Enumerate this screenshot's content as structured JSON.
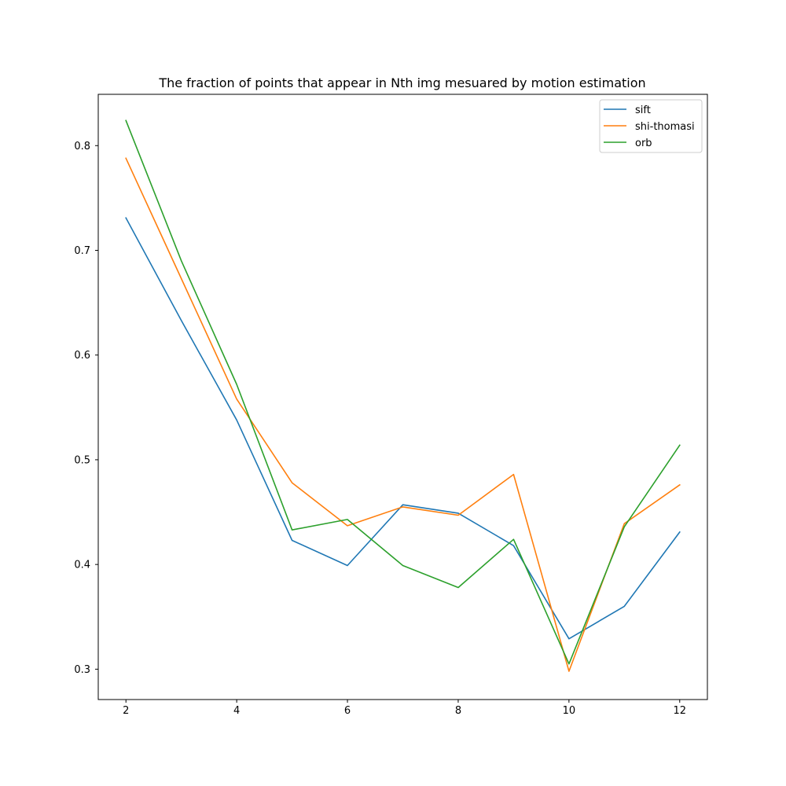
{
  "chart_data": {
    "type": "line",
    "title": "The fraction of points that appear in Nth img mesuared by motion estimation",
    "xlabel": "",
    "ylabel": "",
    "x": [
      2,
      3,
      4,
      5,
      6,
      7,
      8,
      9,
      10,
      11,
      12
    ],
    "xlim": [
      1.5,
      12.5
    ],
    "ylim": [
      0.271,
      0.849
    ],
    "xticks": [
      2,
      4,
      6,
      8,
      10,
      12
    ],
    "yticks": [
      0.3,
      0.4,
      0.5,
      0.6,
      0.7,
      0.8
    ],
    "ytick_labels": [
      "0.3",
      "0.4",
      "0.5",
      "0.6",
      "0.7",
      "0.8"
    ],
    "grid": false,
    "legend_position": "top-right",
    "series": [
      {
        "name": "sift",
        "color": "#1f77b4",
        "values": [
          0.731,
          0.633,
          0.538,
          0.423,
          0.399,
          0.457,
          0.449,
          0.418,
          0.329,
          0.36,
          0.431
        ]
      },
      {
        "name": "shi-thomasi",
        "color": "#ff7f0e",
        "values": [
          0.788,
          0.673,
          0.558,
          0.478,
          0.437,
          0.455,
          0.447,
          0.486,
          0.298,
          0.439,
          0.476
        ]
      },
      {
        "name": "orb",
        "color": "#2ca02c",
        "values": [
          0.824,
          0.69,
          0.572,
          0.433,
          0.443,
          0.399,
          0.378,
          0.424,
          0.305,
          0.436,
          0.514
        ]
      }
    ]
  }
}
